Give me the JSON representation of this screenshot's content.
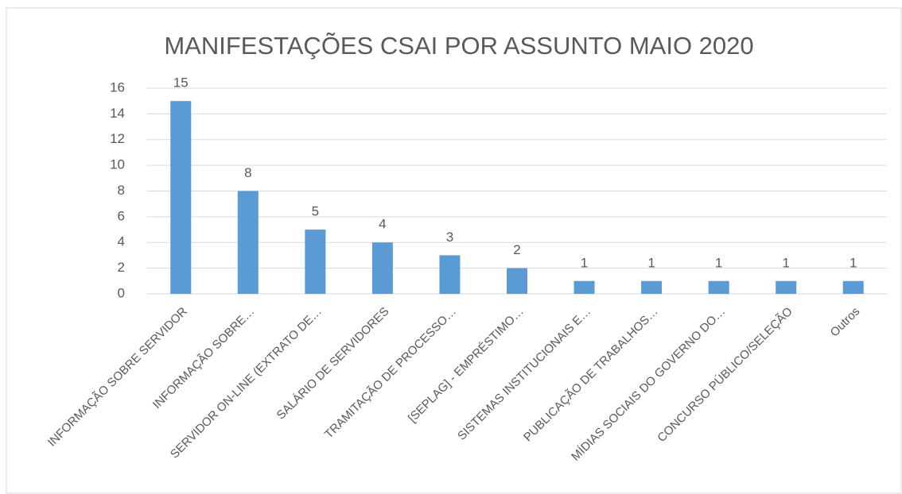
{
  "chart_data": {
    "type": "bar",
    "title": "MANIFESTAÇÕES CSAI POR ASSUNTO MAIO 2020",
    "categories": [
      "INFORMAÇÃO SOBRE SERVIDOR",
      "INFORMAÇÃO SOBRE…",
      "SERVIDOR ON-LINE (EXTRATO DE…",
      "SALÁRIO DE SERVIDORES",
      "TRAMITAÇÃO DE PROCESSO…",
      "[SEPLAG] - EMPRÉSTIMO…",
      "SISTEMAS INSTITUCIONAIS E…",
      "PUBLICAÇÃO DE TRABALHOS…",
      "MÍDIAS SOCIAIS DO GOVERNO DO…",
      "CONCURSO PÚBLICO/SELEÇÃO",
      "Outros"
    ],
    "values": [
      15,
      8,
      5,
      4,
      3,
      2,
      1,
      1,
      1,
      1,
      1
    ],
    "color": "#5b9bd5",
    "ylim": [
      0,
      16
    ],
    "yticks": [
      0,
      2,
      4,
      6,
      8,
      10,
      12,
      14,
      16
    ],
    "grid": true
  }
}
